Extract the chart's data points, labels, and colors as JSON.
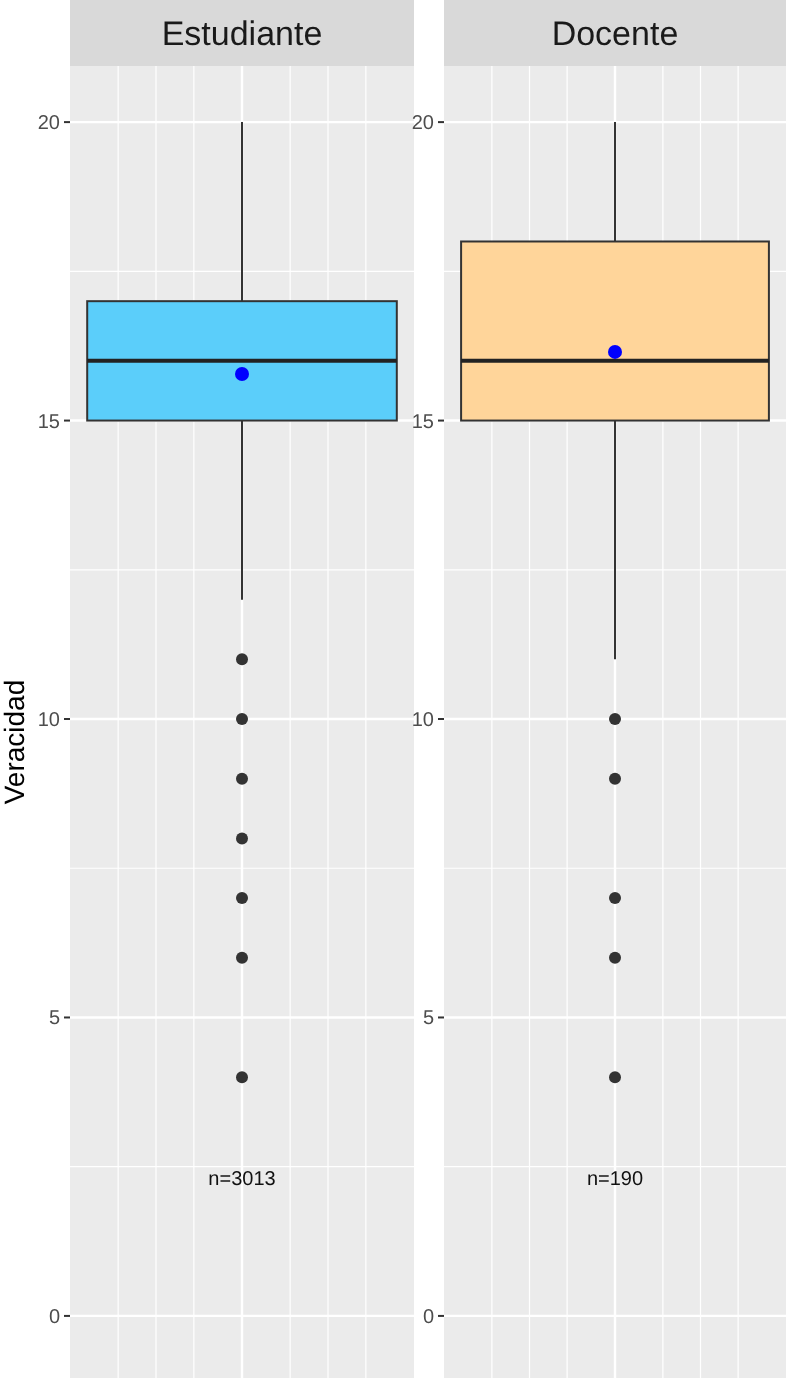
{
  "chart_data": [
    {
      "type": "box",
      "title": "Estudiante",
      "ylabel": "Veracidad",
      "categories": [
        null
      ],
      "ylim": [
        -1.04,
        20.94
      ],
      "yticks": [
        0,
        5,
        10,
        15,
        20
      ],
      "grid": true,
      "color": "#5bcefa",
      "boxes": [
        {
          "low": 12,
          "q1": 15,
          "median": 16,
          "q3": 17,
          "high": 20,
          "mean": 15.78,
          "outliers": [
            11,
            10,
            9,
            8,
            7,
            6,
            4
          ]
        }
      ],
      "annotations": [
        "n=3013"
      ]
    },
    {
      "type": "box",
      "title": "Docente",
      "categories": [
        null
      ],
      "ylim": [
        -1.04,
        20.94
      ],
      "yticks": [
        0,
        5,
        10,
        15,
        20
      ],
      "grid": true,
      "color": "#ffd59a",
      "boxes": [
        {
          "low": 11,
          "q1": 15,
          "median": 16,
          "q3": 18,
          "high": 20,
          "mean": 16.15,
          "outliers": [
            10,
            9,
            7,
            6,
            4
          ]
        }
      ],
      "annotations": [
        "n=190"
      ]
    }
  ]
}
